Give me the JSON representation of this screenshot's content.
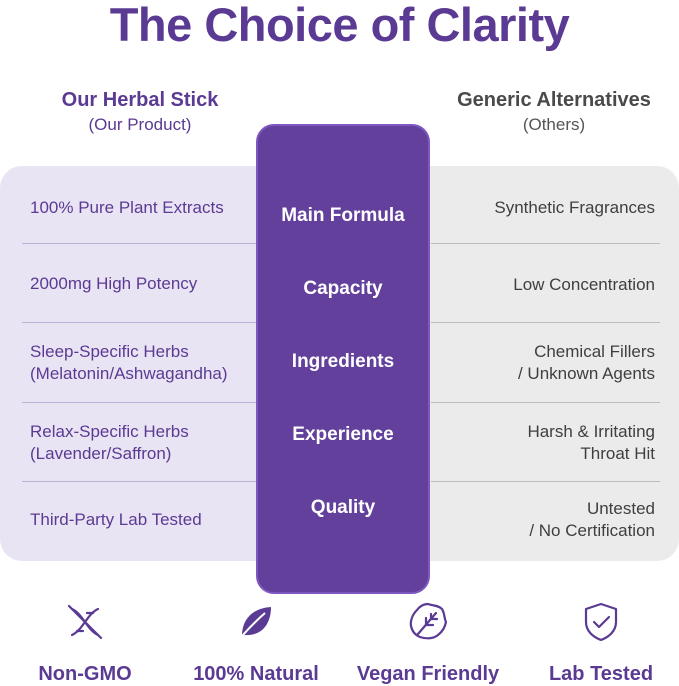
{
  "title": "The Choice of Clarity",
  "left_column": {
    "heading": "Our Herbal Stick",
    "subheading": "(Our Product)",
    "rows": [
      {
        "line1": "100% Pure Plant Extracts",
        "line2": ""
      },
      {
        "line1": "2000mg High Potency",
        "line2": ""
      },
      {
        "line1": "Sleep-Specific Herbs",
        "line2": "(Melatonin/Ashwagandha)"
      },
      {
        "line1": "Relax-Specific Herbs",
        "line2": "(Lavender/Saffron)"
      },
      {
        "line1": "Third-Party Lab Tested",
        "line2": ""
      }
    ]
  },
  "categories": [
    "Main Formula",
    "Capacity",
    "Ingredients",
    "Experience",
    "Quality"
  ],
  "right_column": {
    "heading": "Generic Alternatives",
    "subheading": "(Others)",
    "rows": [
      {
        "line1": "Synthetic Fragrances",
        "line2": ""
      },
      {
        "line1": "Low Concentration",
        "line2": ""
      },
      {
        "line1": "Chemical Fillers",
        "line2": "/ Unknown Agents"
      },
      {
        "line1": "Harsh & Irritating",
        "line2": "Throat Hit"
      },
      {
        "line1": "Untested",
        "line2": "/ No Certification"
      }
    ]
  },
  "features": [
    {
      "label": "Non-GMO",
      "icon": "dna-icon"
    },
    {
      "label": "100% Natural",
      "icon": "leaf-icon"
    },
    {
      "label": "Vegan Friendly",
      "icon": "vegan-leaf-icon"
    },
    {
      "label": "Lab Tested",
      "icon": "shield-check-icon"
    }
  ],
  "colors": {
    "accent": "#5b3a93",
    "center_column": "#62409c",
    "left_panel": "#e9e4f3",
    "right_panel": "#ebebeb"
  }
}
